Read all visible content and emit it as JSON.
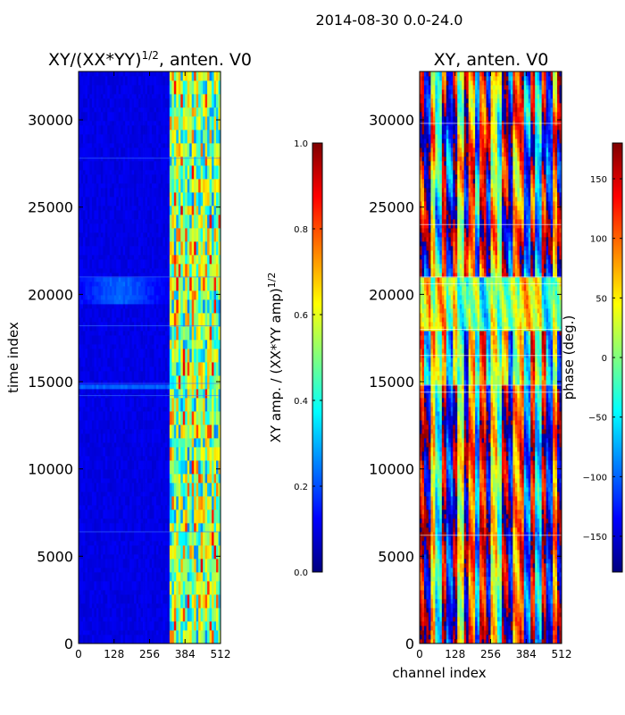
{
  "suptitle": "2014-08-30 0.0-24.0",
  "colors": {
    "jet_stops": [
      "#00007f",
      "#0000ff",
      "#007fff",
      "#00ffff",
      "#7fff7f",
      "#ffff00",
      "#ff7f00",
      "#ff0000",
      "#7f0000"
    ],
    "axis": "#000000",
    "background": "#ffffff"
  },
  "chart_data": [
    {
      "type": "heatmap",
      "title_main": "XY/(XX*YY)",
      "title_sup": "1/2",
      "title_tail": ", anten. V0",
      "xlabel": "",
      "ylabel": "time index",
      "xlim": [
        0,
        512
      ],
      "ylim": [
        0,
        32768
      ],
      "xticks": [
        0,
        128,
        256,
        384,
        512
      ],
      "xtick_labels": [
        "0",
        "128",
        "256",
        "384",
        "512"
      ],
      "yticks": [
        0,
        5000,
        10000,
        15000,
        20000,
        25000,
        30000
      ],
      "ytick_labels": [
        "0",
        "5000",
        "10000",
        "15000",
        "20000",
        "25000",
        "30000"
      ],
      "value_description": "low amplitude (~0.05-0.15) for channels 0-320, patchy high amplitude (0.3-0.8) for channels 320-512",
      "colorbar": {
        "label_main": "XY amp. / (XX*YY amp)",
        "label_sup": "1/2",
        "range": [
          0,
          1.0
        ],
        "ticks": [
          0.0,
          0.2,
          0.4,
          0.6,
          0.8,
          1.0
        ],
        "tick_labels": [
          "0.0",
          "0.2",
          "0.4",
          "0.6",
          "0.8",
          "1.0"
        ]
      }
    },
    {
      "type": "heatmap",
      "title": "XY, anten. V0",
      "xlabel": "channel index",
      "ylabel": "",
      "xlim": [
        0,
        512
      ],
      "ylim": [
        0,
        32768
      ],
      "xticks": [
        0,
        128,
        256,
        384,
        512
      ],
      "xtick_labels": [
        "0",
        "128",
        "256",
        "384",
        "512"
      ],
      "yticks": [
        0,
        5000,
        10000,
        15000,
        20000,
        25000,
        30000
      ],
      "ytick_labels": [
        "0",
        "5000",
        "10000",
        "15000",
        "20000",
        "25000",
        "30000"
      ],
      "value_description": "phase in degrees spanning -180 to 180, vertical banded structure with horizontal discontinuities near time index 14800, 18000 and 21000",
      "colorbar": {
        "label": "phase (deg.)",
        "range": [
          -180,
          180
        ],
        "ticks": [
          -150,
          -100,
          -50,
          0,
          50,
          100,
          150
        ],
        "tick_labels": [
          "−150",
          "−100",
          "−50",
          "0",
          "50",
          "100",
          "150"
        ]
      }
    }
  ]
}
